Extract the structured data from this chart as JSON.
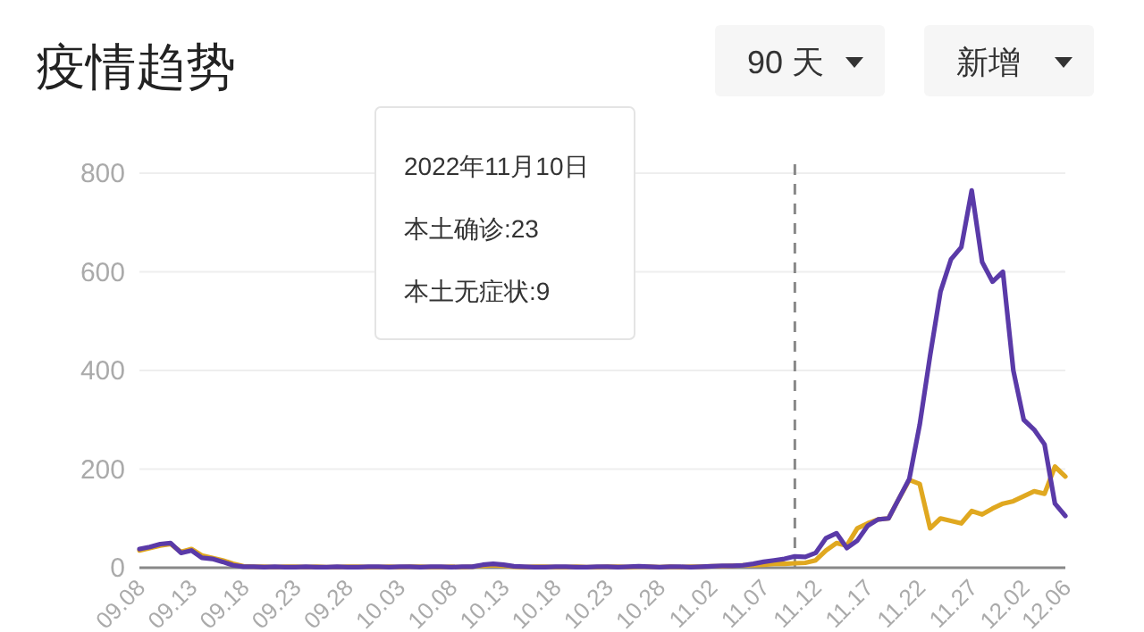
{
  "chart_data": {
    "type": "line",
    "title": "疫情趋势",
    "annotations": [
      "90 天",
      "新增",
      "2022年11月10日",
      "本土确诊:23",
      "本土无症状:9"
    ],
    "x": [
      "2022-09-08",
      "2022-09-09",
      "2022-09-10",
      "2022-09-11",
      "2022-09-12",
      "2022-09-13",
      "2022-09-14",
      "2022-09-15",
      "2022-09-16",
      "2022-09-17",
      "2022-09-18",
      "2022-09-19",
      "2022-09-20",
      "2022-09-21",
      "2022-09-22",
      "2022-09-23",
      "2022-09-24",
      "2022-09-25",
      "2022-09-26",
      "2022-09-27",
      "2022-09-28",
      "2022-09-29",
      "2022-09-30",
      "2022-10-01",
      "2022-10-02",
      "2022-10-03",
      "2022-10-04",
      "2022-10-05",
      "2022-10-06",
      "2022-10-07",
      "2022-10-08",
      "2022-10-09",
      "2022-10-10",
      "2022-10-11",
      "2022-10-12",
      "2022-10-13",
      "2022-10-14",
      "2022-10-15",
      "2022-10-16",
      "2022-10-17",
      "2022-10-18",
      "2022-10-19",
      "2022-10-20",
      "2022-10-21",
      "2022-10-22",
      "2022-10-23",
      "2022-10-24",
      "2022-10-25",
      "2022-10-26",
      "2022-10-27",
      "2022-10-28",
      "2022-10-29",
      "2022-10-30",
      "2022-10-31",
      "2022-11-01",
      "2022-11-02",
      "2022-11-03",
      "2022-11-04",
      "2022-11-05",
      "2022-11-06",
      "2022-11-07",
      "2022-11-08",
      "2022-11-09",
      "2022-11-10",
      "2022-11-11",
      "2022-11-12",
      "2022-11-13",
      "2022-11-14",
      "2022-11-15",
      "2022-11-16",
      "2022-11-17",
      "2022-11-18",
      "2022-11-19",
      "2022-11-20",
      "2022-11-21",
      "2022-11-22",
      "2022-11-23",
      "2022-11-24",
      "2022-11-25",
      "2022-11-26",
      "2022-11-27",
      "2022-11-28",
      "2022-11-29",
      "2022-11-30",
      "2022-12-01",
      "2022-12-02",
      "2022-12-03",
      "2022-12-04",
      "2022-12-05",
      "2022-12-06"
    ],
    "series": [
      {
        "color": "#e0a820",
        "values": [
          35,
          40,
          45,
          48,
          32,
          38,
          25,
          20,
          15,
          8,
          3,
          2,
          2,
          1,
          2,
          2,
          1,
          2,
          1,
          1,
          2,
          2,
          1,
          1,
          2,
          1,
          2,
          2,
          1,
          1,
          2,
          1,
          2,
          4,
          5,
          4,
          2,
          1,
          2,
          2,
          1,
          1,
          2,
          1,
          1,
          2,
          2,
          1,
          2,
          2,
          1,
          2,
          1,
          2,
          2,
          3,
          3,
          4,
          5,
          5,
          6,
          8,
          8,
          9,
          10,
          15,
          35,
          50,
          45,
          80,
          90,
          98,
          100,
          140,
          178,
          170,
          80,
          100,
          95,
          90,
          115,
          108,
          120,
          130,
          135,
          145,
          155,
          150,
          205,
          185
        ]
      },
      {
        "color": "#5a3aa8",
        "values": [
          38,
          42,
          48,
          50,
          30,
          35,
          20,
          18,
          12,
          5,
          2,
          2,
          1,
          2,
          1,
          1,
          2,
          1,
          1,
          2,
          1,
          1,
          2,
          2,
          1,
          2,
          2,
          1,
          2,
          2,
          1,
          2,
          2,
          6,
          8,
          6,
          3,
          2,
          1,
          1,
          2,
          2,
          1,
          1,
          2,
          2,
          1,
          2,
          3,
          2,
          1,
          2,
          2,
          1,
          2,
          3,
          4,
          4,
          5,
          8,
          12,
          15,
          18,
          23,
          22,
          30,
          60,
          70,
          40,
          55,
          85,
          98,
          100,
          140,
          180,
          290,
          430,
          560,
          625,
          650,
          765,
          620,
          580,
          600,
          400,
          300,
          280,
          250,
          130,
          105
        ]
      }
    ],
    "xlim": [
      "2022-09-08",
      "2022-12-06"
    ],
    "xticks": [
      {
        "value": "2022-09-08",
        "label": "09.08"
      },
      {
        "value": "2022-09-13",
        "label": "09.13"
      },
      {
        "value": "2022-09-18",
        "label": "09.18"
      },
      {
        "value": "2022-09-23",
        "label": "09.23"
      },
      {
        "value": "2022-09-28",
        "label": "09.28"
      },
      {
        "value": "2022-10-03",
        "label": "10.03"
      },
      {
        "value": "2022-10-08",
        "label": "10.08"
      },
      {
        "value": "2022-10-13",
        "label": "10.13"
      },
      {
        "value": "2022-10-18",
        "label": "10.18"
      },
      {
        "value": "2022-10-23",
        "label": "10.23"
      },
      {
        "value": "2022-10-28",
        "label": "10.28"
      },
      {
        "value": "2022-11-02",
        "label": "11.02"
      },
      {
        "value": "2022-11-07",
        "label": "11.07"
      },
      {
        "value": "2022-11-12",
        "label": "11.12"
      },
      {
        "value": "2022-11-17",
        "label": "11.17"
      },
      {
        "value": "2022-11-22",
        "label": "11.22"
      },
      {
        "value": "2022-11-27",
        "label": "11.27"
      },
      {
        "value": "2022-12-02",
        "label": "12.02"
      },
      {
        "value": "2022-12-06",
        "label": "12.06"
      }
    ],
    "ylim": [
      0,
      800
    ],
    "yticks": [
      0,
      200,
      400,
      600,
      800
    ],
    "grid": "y",
    "ref_lines": [
      {
        "axis": "x",
        "value": "2022-11-10",
        "color": "#888888",
        "line_style": "dashed"
      }
    ],
    "line_style": "solid"
  }
}
